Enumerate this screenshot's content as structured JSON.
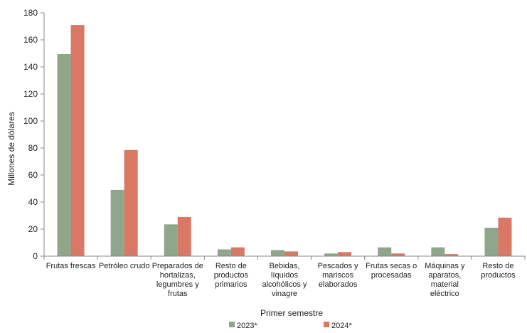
{
  "chart_data": {
    "type": "bar",
    "xlabel": "Primer semestre",
    "ylabel": "Millones de dólares",
    "ylim": [
      0,
      180
    ],
    "yticks": [
      0,
      20,
      40,
      60,
      80,
      100,
      120,
      140,
      160,
      180
    ],
    "grid": false,
    "legend_position": "bottom",
    "categories": [
      [
        "Frutas frescas"
      ],
      [
        "Petróleo crudo"
      ],
      [
        "Preparados de",
        "hortalizas,",
        "legumbres y",
        "frutas"
      ],
      [
        "Resto de",
        "productos",
        "primarios"
      ],
      [
        "Bebidas,",
        "líquidos",
        "alcohólicos y",
        "vinagre"
      ],
      [
        "Pescados y",
        "mariscos",
        "elaborados"
      ],
      [
        "Frutas secas o",
        "procesadas"
      ],
      [
        "Máquinas y",
        "aparatos,",
        "material",
        "eléctrico"
      ],
      [
        "Resto de",
        "productos"
      ]
    ],
    "series": [
      {
        "name": "2023*",
        "color": "#8fa68a",
        "values": [
          149.5,
          49,
          23.5,
          5,
          4.5,
          2,
          6.5,
          6.5,
          21
        ]
      },
      {
        "name": "2024*",
        "color": "#d97865",
        "values": [
          171,
          78.5,
          29,
          6.5,
          3.5,
          3,
          2,
          1.5,
          28.5
        ]
      }
    ]
  }
}
